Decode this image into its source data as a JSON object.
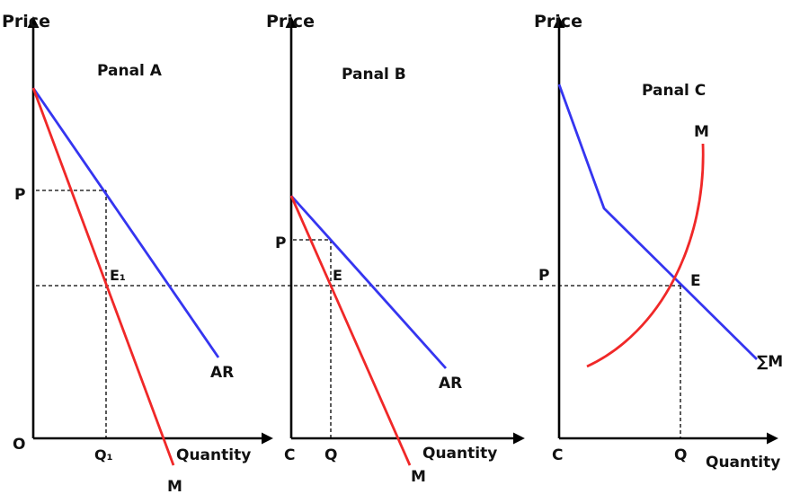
{
  "colors": {
    "ar_line": "#3535f0",
    "m_line": "#f02828",
    "axis": "#000000"
  },
  "panel_a": {
    "title": "Panal A",
    "y_axis": "Price",
    "x_axis": "Quantity",
    "origin": "O",
    "price_tick": "P",
    "quantity_tick": "Q₁",
    "equilibrium": "E₁",
    "ar_label": "AR",
    "m_label": "M"
  },
  "panel_b": {
    "title": "Panal B",
    "y_axis": "Price",
    "x_axis": "Quantity",
    "origin": "C",
    "price_tick": "P",
    "quantity_tick": "Q",
    "equilibrium": "E",
    "ar_label": "AR",
    "m_label": "M"
  },
  "panel_c": {
    "title": "Panal C",
    "y_axis": "Price",
    "x_axis": "Quantity",
    "origin": "C",
    "price_tick": "P",
    "quantity_tick": "Q",
    "equilibrium": "E",
    "sum_label": "∑M",
    "m_label": "M"
  }
}
